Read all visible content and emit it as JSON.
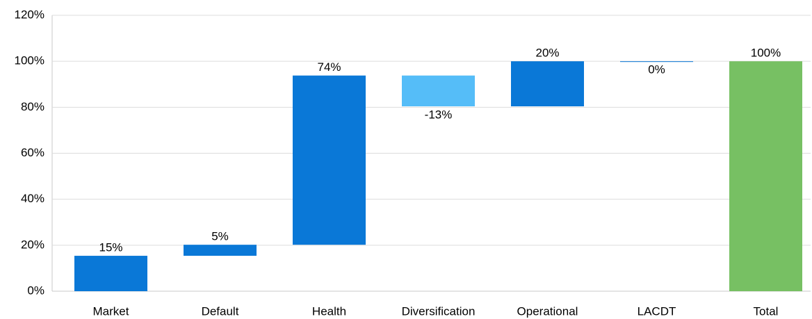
{
  "chart_data": {
    "type": "waterfall",
    "categories": [
      "Market",
      "Default",
      "Health",
      "Diversification",
      "Operational",
      "LACDT",
      "Total"
    ],
    "values": [
      15.4,
      4.8,
      73.6,
      -13.4,
      19.6,
      0,
      100
    ],
    "value_labels": [
      "15%",
      "5%",
      "74%",
      "-13%",
      "20%",
      "0%",
      "100%"
    ],
    "colors": [
      "#0a78d7",
      "#0a78d7",
      "#0a78d7",
      "#55bdf8",
      "#0a78d7",
      "#0a78d7",
      "#77c063"
    ],
    "ylim": [
      0,
      120
    ],
    "yticks": [
      {
        "value": 0,
        "label": "0%"
      },
      {
        "value": 20,
        "label": "20%"
      },
      {
        "value": 40,
        "label": "40%"
      },
      {
        "value": 60,
        "label": "60%"
      },
      {
        "value": 80,
        "label": "80%"
      },
      {
        "value": 100,
        "label": "100%"
      },
      {
        "value": 120,
        "label": "120%"
      }
    ],
    "grid": true
  }
}
